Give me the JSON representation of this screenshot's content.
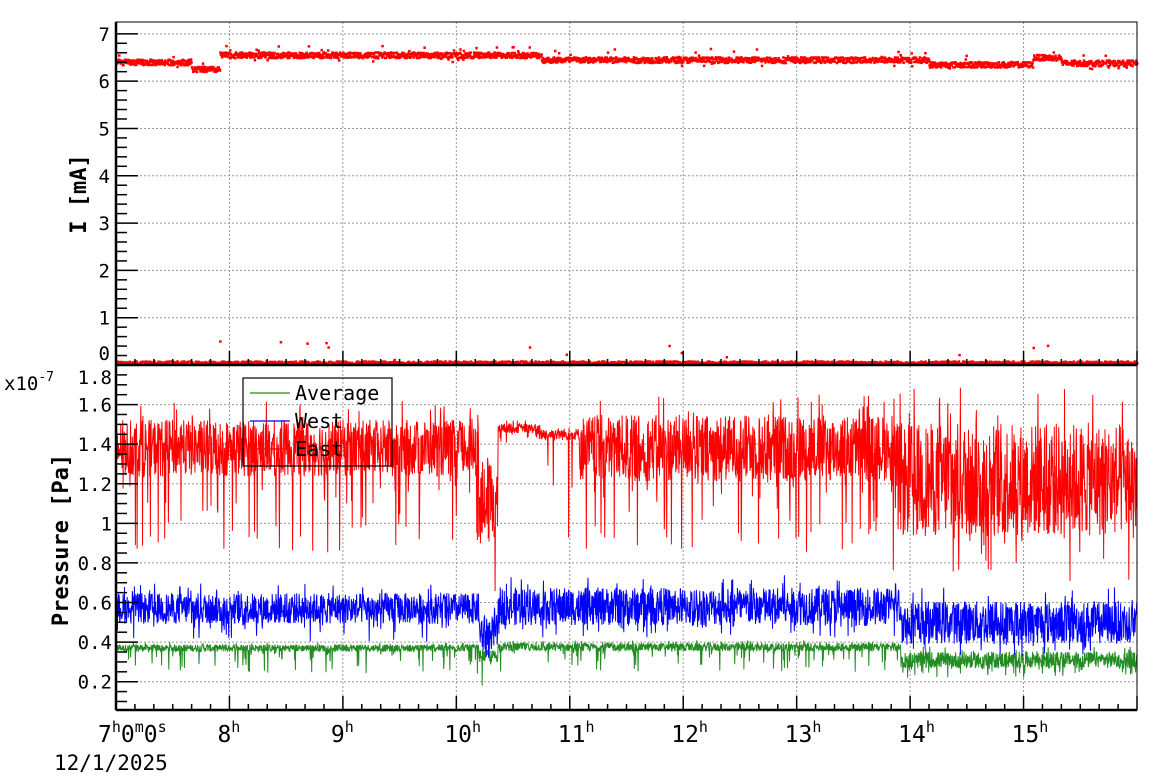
{
  "chart_data": [
    {
      "type": "scatter",
      "ylabel": "I [mA]",
      "ylim": [
        0,
        7.25
      ],
      "xlim": [
        "07:00",
        "16:00"
      ],
      "yticks": [
        "0",
        "1",
        "2",
        "3",
        "4",
        "5",
        "6",
        "7"
      ],
      "grid": true,
      "colors": {
        "current": "#ff0000"
      },
      "series": [
        {
          "segments": [
            {
              "t0": "07:00",
              "t1": "07:40",
              "mean": 6.4,
              "lo": 6.3,
              "hi": 6.6
            },
            {
              "t0": "07:40",
              "t1": "07:55",
              "mean": 6.25,
              "lo": 6.15,
              "hi": 6.4
            },
            {
              "t0": "07:55",
              "t1": "10:45",
              "mean": 6.55,
              "lo": 6.4,
              "hi": 6.75
            },
            {
              "t0": "10:45",
              "t1": "14:10",
              "mean": 6.45,
              "lo": 6.3,
              "hi": 6.7
            },
            {
              "t0": "14:10",
              "t1": "15:05",
              "mean": 6.35,
              "lo": 6.25,
              "hi": 6.55
            },
            {
              "t0": "15:05",
              "t1": "15:20",
              "mean": 6.5,
              "lo": 6.35,
              "hi": 6.65
            },
            {
              "t0": "15:20",
              "t1": "16:00",
              "mean": 6.38,
              "lo": 6.25,
              "hi": 6.55
            }
          ]
        },
        {
          "segments": [
            {
              "t0": "07:00",
              "t1": "16:00",
              "mean": 0.05,
              "lo": 0.0,
              "hi": 0.55
            }
          ]
        }
      ]
    },
    {
      "type": "line",
      "ylabel": "Pressure [Pa]",
      "yscale_label": "x10",
      "yscale_exp": "-7",
      "ylim": [
        0.057,
        1.8
      ],
      "yticks": [
        "0.2",
        "0.4",
        "0.6",
        "0.8",
        "1",
        "1.2",
        "1.4",
        "1.6",
        "1.8"
      ],
      "xlim": [
        "07:00",
        "16:00"
      ],
      "xticks": [
        "7",
        "8",
        "9",
        "10",
        "11",
        "12",
        "13",
        "14",
        "15"
      ],
      "xtick_first_suffix": [
        "h",
        "0",
        "m",
        "0",
        "s"
      ],
      "xtick_suffix": "h",
      "date_label": "12/1/2025",
      "grid": true,
      "legend": {
        "placement": "top-left",
        "entries": [
          "Average",
          "West",
          "East"
        ]
      },
      "series": [
        {
          "name": "Average",
          "color": "#228b22",
          "segments": [
            {
              "t0": "07:00",
              "t1": "10:12",
              "mean": 0.37,
              "lo": 0.24,
              "hi": 0.4
            },
            {
              "t0": "10:12",
              "t1": "10:22",
              "mean": 0.33,
              "lo": 0.17,
              "hi": 0.38
            },
            {
              "t0": "10:22",
              "t1": "13:55",
              "mean": 0.375,
              "lo": 0.25,
              "hi": 0.41
            },
            {
              "t0": "13:55",
              "t1": "16:00",
              "mean": 0.31,
              "lo": 0.22,
              "hi": 0.38
            }
          ]
        },
        {
          "name": "West",
          "color": "#0000ff",
          "segments": [
            {
              "t0": "07:00",
              "t1": "10:12",
              "mean": 0.57,
              "lo": 0.4,
              "hi": 0.7
            },
            {
              "t0": "10:12",
              "t1": "10:22",
              "mean": 0.45,
              "lo": 0.3,
              "hi": 0.6
            },
            {
              "t0": "10:22",
              "t1": "13:55",
              "mean": 0.58,
              "lo": 0.42,
              "hi": 0.74
            },
            {
              "t0": "13:55",
              "t1": "16:00",
              "mean": 0.5,
              "lo": 0.33,
              "hi": 0.68
            }
          ]
        },
        {
          "name": "East",
          "color": "#ff0000",
          "segments": [
            {
              "t0": "07:00",
              "t1": "10:12",
              "mean": 1.38,
              "lo": 0.85,
              "hi": 1.62
            },
            {
              "t0": "10:12",
              "t1": "10:22",
              "mean": 1.1,
              "lo": 0.65,
              "hi": 1.45
            },
            {
              "t0": "10:22",
              "t1": "10:42",
              "mean": 1.48,
              "lo": 1.4,
              "hi": 1.52
            },
            {
              "t0": "10:42",
              "t1": "11:05",
              "mean": 1.45,
              "lo": 0.9,
              "hi": 1.5
            },
            {
              "t0": "11:05",
              "t1": "13:50",
              "mean": 1.38,
              "lo": 0.85,
              "hi": 1.66
            },
            {
              "t0": "13:50",
              "t1": "16:00",
              "mean": 1.22,
              "lo": 0.7,
              "hi": 1.7
            }
          ]
        }
      ]
    }
  ]
}
